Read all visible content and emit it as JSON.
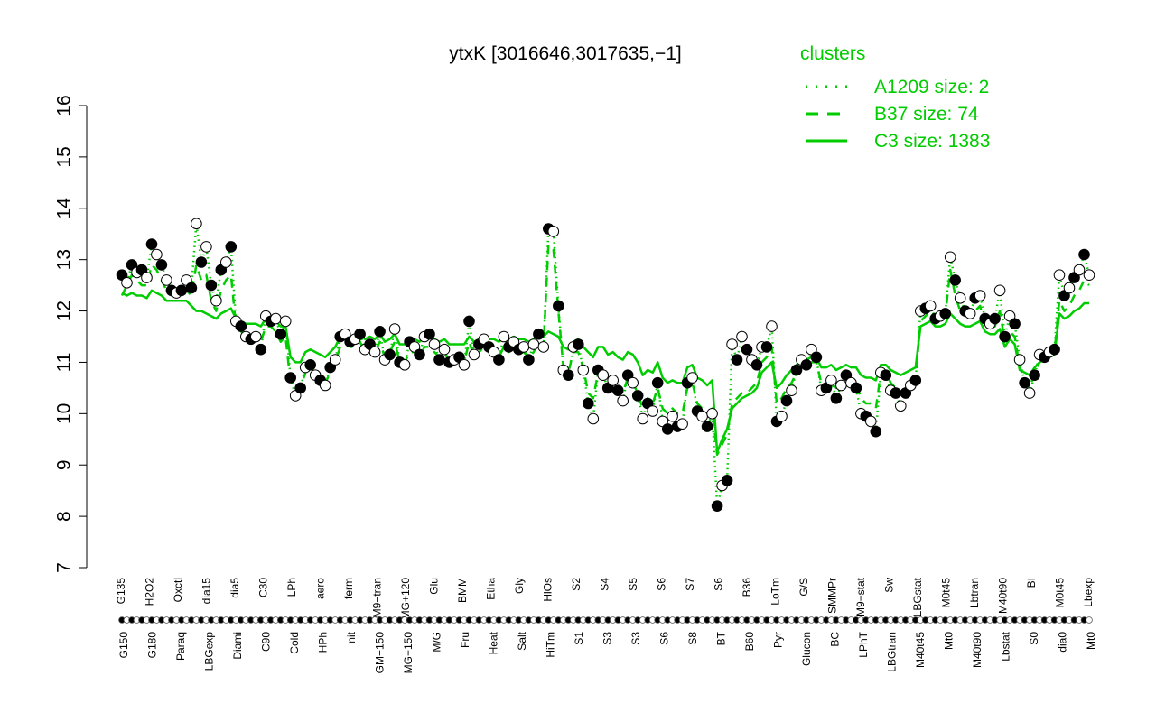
{
  "chart_data": {
    "type": "line",
    "title": "ytxK [3016646,3017635,−1]",
    "ylim": [
      7,
      16
    ],
    "yticks": [
      "7",
      "8",
      "9",
      "10",
      "11",
      "12",
      "13",
      "14",
      "15",
      "16"
    ],
    "legend": {
      "title": "clusters",
      "placement": "top-right",
      "entries": [
        {
          "label": "A1209 size: 2",
          "style": "dotted"
        },
        {
          "label": "B37 size: 74",
          "style": "dashed"
        },
        {
          "label": "C3 size: 1383",
          "style": "solid"
        }
      ]
    },
    "x_labels_top": [
      "G135",
      "H2O2",
      "Oxctl",
      "dia15",
      "dia5",
      "C30",
      "LPh",
      "aero",
      "ferm",
      "M9−tran",
      "MG+120",
      "Glu",
      "BMM",
      "Etha",
      "Gly",
      "HiOs",
      "S2",
      "S4",
      "S5",
      "S6",
      "S7",
      "S6",
      "B36",
      "LoTm",
      "G/S",
      "SMMPr",
      "M9−stat",
      "Sw",
      "LBGstat",
      "M0t45",
      "Lbtran",
      "M40t90",
      "BI",
      "M0t45",
      "Lbexp"
    ],
    "x_labels_bottom": [
      "G150",
      "G180",
      "Paraq",
      "LBGexp",
      "Diami",
      "C90",
      "Cold",
      "HPh",
      "nit",
      "GM+150",
      "MG+150",
      "M/G",
      "Fru",
      "Heat",
      "Salt",
      "HiTm",
      "S1",
      "S3",
      "S3",
      "S6",
      "S8",
      "BT",
      "B60",
      "Pyr",
      "Glucon",
      "BC",
      "LPhT",
      "LBGtran",
      "M40t45",
      "Mt0",
      "M40t90",
      "Lbstat",
      "S0",
      "dia0",
      "Mt0"
    ],
    "series": [
      {
        "style": "dotted",
        "values": [
          12.7,
          12.55,
          12.9,
          12.75,
          12.8,
          12.65,
          13.3,
          13.1,
          12.9,
          12.6,
          12.4,
          12.35,
          12.4,
          12.6,
          12.45,
          13.7,
          12.95,
          13.25,
          12.5,
          12.2,
          12.8,
          12.95,
          13.25,
          11.8,
          11.7,
          11.5,
          11.45,
          11.5,
          11.25,
          11.9,
          11.8,
          11.85,
          11.55,
          11.8,
          10.7,
          10.35,
          10.5,
          10.9,
          10.95,
          10.75,
          10.65,
          10.55,
          10.9,
          11.05,
          11.5,
          11.55,
          11.4,
          11.45,
          11.55,
          11.25,
          11.35,
          11.2,
          11.6,
          11.05,
          11.15,
          11.65,
          11.0,
          10.95,
          11.4,
          11.3,
          11.15,
          11.5,
          11.55,
          11.35,
          11.05,
          11.25,
          11.0,
          11.05,
          11.1,
          10.95,
          11.8,
          11.15,
          11.35,
          11.45,
          11.3,
          11.2,
          11.05,
          11.5,
          11.3,
          11.4,
          11.25,
          11.3,
          11.05,
          11.35,
          11.55,
          11.3,
          13.6,
          13.55,
          12.1,
          10.85,
          10.75,
          11.3,
          11.35,
          10.85,
          10.2,
          9.9,
          10.85,
          10.75,
          10.5,
          10.65,
          10.45,
          10.25,
          10.75,
          10.6,
          10.35,
          9.9,
          10.2,
          10.05,
          10.6,
          9.85,
          9.7,
          9.95,
          9.75,
          9.8,
          10.6,
          10.7,
          10.05,
          9.95,
          9.75,
          10.0,
          8.2,
          8.6,
          8.7,
          11.35,
          11.05,
          11.5,
          11.25,
          11.05,
          10.95,
          11.3,
          11.3,
          11.7,
          9.85,
          9.95,
          10.25,
          10.45,
          10.85,
          11.05,
          10.95,
          11.25,
          11.1,
          10.45,
          10.5,
          10.65,
          10.3,
          10.55,
          10.75,
          10.6,
          10.5,
          10.0,
          9.95,
          9.85,
          9.65,
          10.8,
          10.75,
          10.45,
          10.4,
          10.15,
          10.4,
          10.55,
          10.65,
          12.0,
          12.05,
          12.1,
          11.85,
          11.9,
          11.95,
          13.05,
          12.6,
          12.25,
          12.0,
          11.95,
          12.25,
          12.3,
          11.85,
          11.75,
          11.85,
          12.4,
          11.5,
          11.9,
          11.75,
          11.05,
          10.6,
          10.4,
          10.75,
          11.15,
          11.1,
          11.2,
          11.25,
          12.7,
          12.3,
          12.45,
          12.65,
          12.8,
          13.1,
          12.7
        ]
      },
      {
        "style": "dashed",
        "values": [
          12.3,
          12.5,
          12.7,
          12.6,
          12.5,
          12.5,
          12.9,
          12.8,
          12.6,
          12.4,
          12.3,
          12.4,
          12.4,
          12.4,
          12.3,
          12.9,
          12.6,
          12.7,
          12.2,
          12.0,
          12.4,
          12.6,
          12.7,
          11.7,
          11.6,
          11.5,
          11.5,
          11.5,
          11.4,
          11.7,
          11.7,
          11.6,
          11.4,
          11.5,
          10.6,
          10.5,
          10.5,
          10.8,
          10.9,
          10.8,
          10.7,
          10.6,
          10.8,
          11.0,
          11.3,
          11.4,
          11.3,
          11.3,
          11.4,
          11.2,
          11.3,
          11.2,
          11.4,
          11.1,
          11.2,
          11.4,
          11.0,
          11.0,
          11.2,
          11.2,
          11.1,
          11.3,
          11.3,
          11.2,
          11.1,
          11.2,
          11.0,
          11.0,
          11.0,
          11.0,
          11.4,
          11.1,
          11.2,
          11.3,
          11.2,
          11.2,
          11.1,
          11.3,
          11.2,
          11.3,
          11.2,
          11.2,
          11.1,
          11.2,
          11.4,
          11.3,
          13.3,
          13.2,
          12.0,
          10.9,
          10.8,
          11.2,
          11.2,
          10.9,
          10.4,
          10.3,
          10.8,
          10.8,
          10.6,
          10.7,
          10.5,
          10.4,
          10.7,
          10.6,
          10.4,
          10.1,
          10.3,
          10.2,
          10.5,
          10.1,
          10.0,
          10.1,
          10.0,
          10.0,
          10.5,
          10.6,
          10.2,
          10.1,
          10.0,
          10.1,
          9.2,
          9.4,
          9.6,
          10.2,
          10.3,
          10.4,
          10.4,
          10.5,
          10.6,
          11.0,
          11.1,
          11.3,
          10.2,
          10.3,
          10.5,
          10.6,
          10.8,
          10.9,
          10.9,
          11.0,
          11.0,
          10.6,
          10.6,
          10.7,
          10.5,
          10.6,
          10.7,
          10.6,
          10.6,
          10.3,
          10.2,
          10.2,
          10.1,
          10.8,
          10.8,
          10.6,
          10.5,
          10.4,
          10.5,
          10.6,
          10.7,
          11.8,
          11.9,
          12.0,
          11.8,
          11.8,
          11.9,
          12.8,
          12.3,
          12.0,
          11.9,
          11.9,
          12.0,
          12.1,
          11.7,
          11.7,
          11.7,
          12.0,
          11.4,
          11.6,
          11.5,
          10.9,
          10.7,
          10.5,
          10.8,
          11.0,
          11.1,
          11.1,
          11.2,
          12.2,
          12.0,
          12.1,
          12.3,
          12.4,
          12.6,
          12.5
        ]
      },
      {
        "style": "solid",
        "values": [
          12.35,
          12.3,
          12.35,
          12.3,
          12.3,
          12.25,
          12.4,
          12.35,
          12.3,
          12.2,
          12.2,
          12.2,
          12.2,
          12.2,
          12.1,
          12.0,
          12.0,
          11.95,
          11.9,
          11.85,
          11.95,
          12.0,
          12.05,
          11.85,
          11.8,
          11.75,
          11.75,
          11.75,
          11.7,
          11.85,
          11.85,
          11.8,
          11.7,
          11.7,
          11.1,
          11.0,
          11.0,
          11.2,
          11.25,
          11.2,
          11.15,
          11.1,
          11.2,
          11.3,
          11.5,
          11.55,
          11.5,
          11.5,
          11.55,
          11.45,
          11.5,
          11.45,
          11.55,
          11.4,
          11.45,
          11.55,
          11.35,
          11.35,
          11.45,
          11.45,
          11.4,
          11.5,
          11.5,
          11.45,
          11.4,
          11.45,
          11.35,
          11.35,
          11.35,
          11.35,
          11.5,
          11.4,
          11.45,
          11.5,
          11.45,
          11.45,
          11.4,
          11.5,
          11.45,
          11.5,
          11.45,
          11.45,
          11.4,
          11.45,
          11.55,
          11.5,
          11.6,
          11.55,
          11.5,
          11.3,
          11.25,
          11.4,
          11.45,
          11.3,
          11.2,
          11.1,
          11.3,
          11.3,
          11.15,
          11.2,
          11.1,
          11.05,
          11.2,
          11.15,
          11.0,
          10.75,
          10.85,
          10.8,
          11.0,
          10.7,
          10.6,
          10.65,
          10.6,
          10.6,
          10.9,
          10.95,
          10.7,
          10.65,
          10.55,
          10.65,
          9.25,
          9.5,
          9.7,
          10.1,
          10.2,
          10.3,
          10.35,
          10.4,
          10.5,
          10.8,
          10.9,
          11.0,
          10.5,
          10.6,
          10.75,
          10.85,
          10.95,
          11.05,
          11.05,
          11.1,
          11.1,
          10.9,
          10.9,
          10.95,
          10.85,
          10.9,
          10.95,
          10.9,
          10.9,
          10.75,
          10.7,
          10.7,
          10.65,
          10.95,
          10.95,
          10.85,
          10.8,
          10.75,
          10.8,
          10.85,
          10.9,
          11.7,
          11.75,
          11.8,
          11.7,
          11.7,
          11.75,
          11.95,
          11.85,
          11.75,
          11.7,
          11.7,
          11.75,
          11.8,
          11.6,
          11.55,
          11.55,
          11.65,
          11.3,
          11.45,
          11.35,
          10.85,
          10.8,
          10.75,
          10.9,
          11.0,
          11.05,
          11.1,
          11.15,
          11.95,
          11.85,
          11.9,
          12.0,
          12.05,
          12.15,
          12.15
        ]
      }
    ],
    "points": [
      12.7,
      12.55,
      12.9,
      12.75,
      12.8,
      12.65,
      13.3,
      13.1,
      12.9,
      12.6,
      12.4,
      12.35,
      12.4,
      12.6,
      12.45,
      13.7,
      12.95,
      13.25,
      12.5,
      12.2,
      12.8,
      12.95,
      13.25,
      11.8,
      11.7,
      11.5,
      11.45,
      11.5,
      11.25,
      11.9,
      11.8,
      11.85,
      11.55,
      11.8,
      10.7,
      10.35,
      10.5,
      10.9,
      10.95,
      10.75,
      10.65,
      10.55,
      10.9,
      11.05,
      11.5,
      11.55,
      11.4,
      11.45,
      11.55,
      11.25,
      11.35,
      11.2,
      11.6,
      11.05,
      11.15,
      11.65,
      11.0,
      10.95,
      11.4,
      11.3,
      11.15,
      11.5,
      11.55,
      11.35,
      11.05,
      11.25,
      11.0,
      11.05,
      11.1,
      10.95,
      11.8,
      11.15,
      11.35,
      11.45,
      11.3,
      11.2,
      11.05,
      11.5,
      11.3,
      11.4,
      11.25,
      11.3,
      11.05,
      11.35,
      11.55,
      11.3,
      13.6,
      13.55,
      12.1,
      10.85,
      10.75,
      11.3,
      11.35,
      10.85,
      10.2,
      9.9,
      10.85,
      10.75,
      10.5,
      10.65,
      10.45,
      10.25,
      10.75,
      10.6,
      10.35,
      9.9,
      10.2,
      10.05,
      10.6,
      9.85,
      9.7,
      9.95,
      9.75,
      9.8,
      10.6,
      10.7,
      10.05,
      9.95,
      9.75,
      10.0,
      8.2,
      8.6,
      8.7,
      11.35,
      11.05,
      11.5,
      11.25,
      11.05,
      10.95,
      11.3,
      11.3,
      11.7,
      9.85,
      9.95,
      10.25,
      10.45,
      10.85,
      11.05,
      10.95,
      11.25,
      11.1,
      10.45,
      10.5,
      10.65,
      10.3,
      10.55,
      10.75,
      10.6,
      10.5,
      10.0,
      9.95,
      9.85,
      9.65,
      10.8,
      10.75,
      10.45,
      10.4,
      10.15,
      10.4,
      10.55,
      10.65,
      12.0,
      12.05,
      12.1,
      11.85,
      11.9,
      11.95,
      13.05,
      12.6,
      12.25,
      12.0,
      11.95,
      12.25,
      12.3,
      11.85,
      11.75,
      11.85,
      12.4,
      11.5,
      11.9,
      11.75,
      11.05,
      10.6,
      10.4,
      10.75,
      11.15,
      11.1,
      11.2,
      11.25,
      12.7,
      12.3,
      12.45,
      12.65,
      12.8,
      13.1,
      12.7
    ],
    "series_color": "#00cc00",
    "marker_fill_colors": [
      "#000000",
      "#ffffff"
    ]
  }
}
